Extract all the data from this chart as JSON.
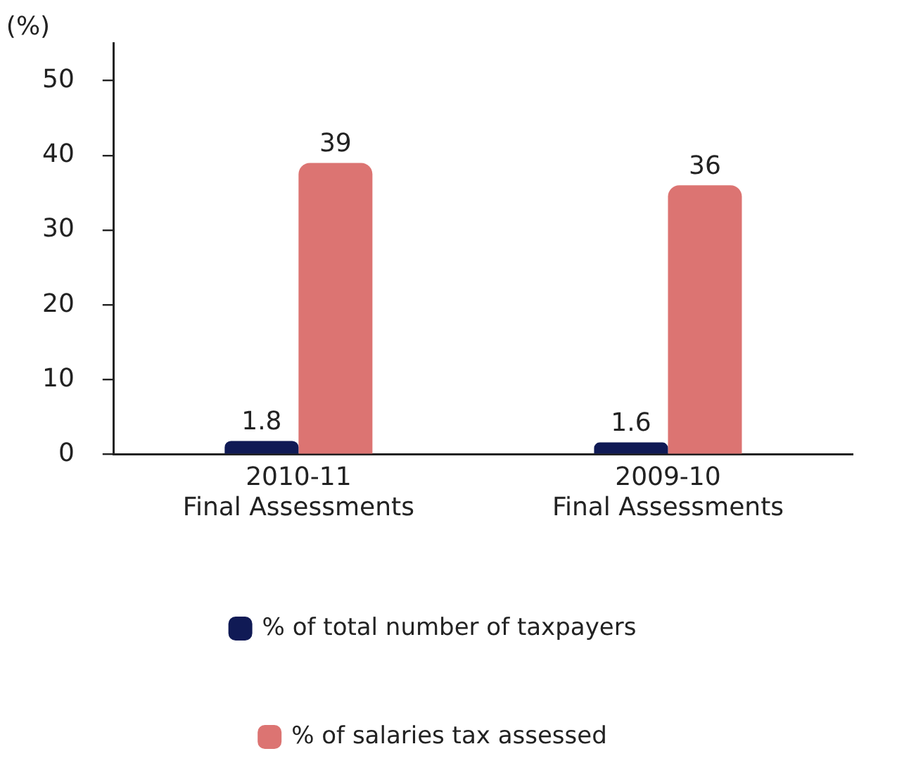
{
  "chart_data": {
    "type": "bar",
    "ylabel": "(%)",
    "categories": [
      "2010-11\nFinal Assessments",
      "2009-10\nFinal Assessments"
    ],
    "series": [
      {
        "name": "% of total number of taxpayers",
        "color": "#101a55",
        "values": [
          1.8,
          1.6
        ]
      },
      {
        "name": "% of salaries tax assessed",
        "color": "#dc7472",
        "values": [
          39,
          36
        ]
      }
    ],
    "ylim": [
      0,
      55
    ],
    "yticks": [
      0,
      10,
      20,
      30,
      40,
      50
    ],
    "grid": false,
    "legend": "bottom",
    "data_labels": true
  }
}
